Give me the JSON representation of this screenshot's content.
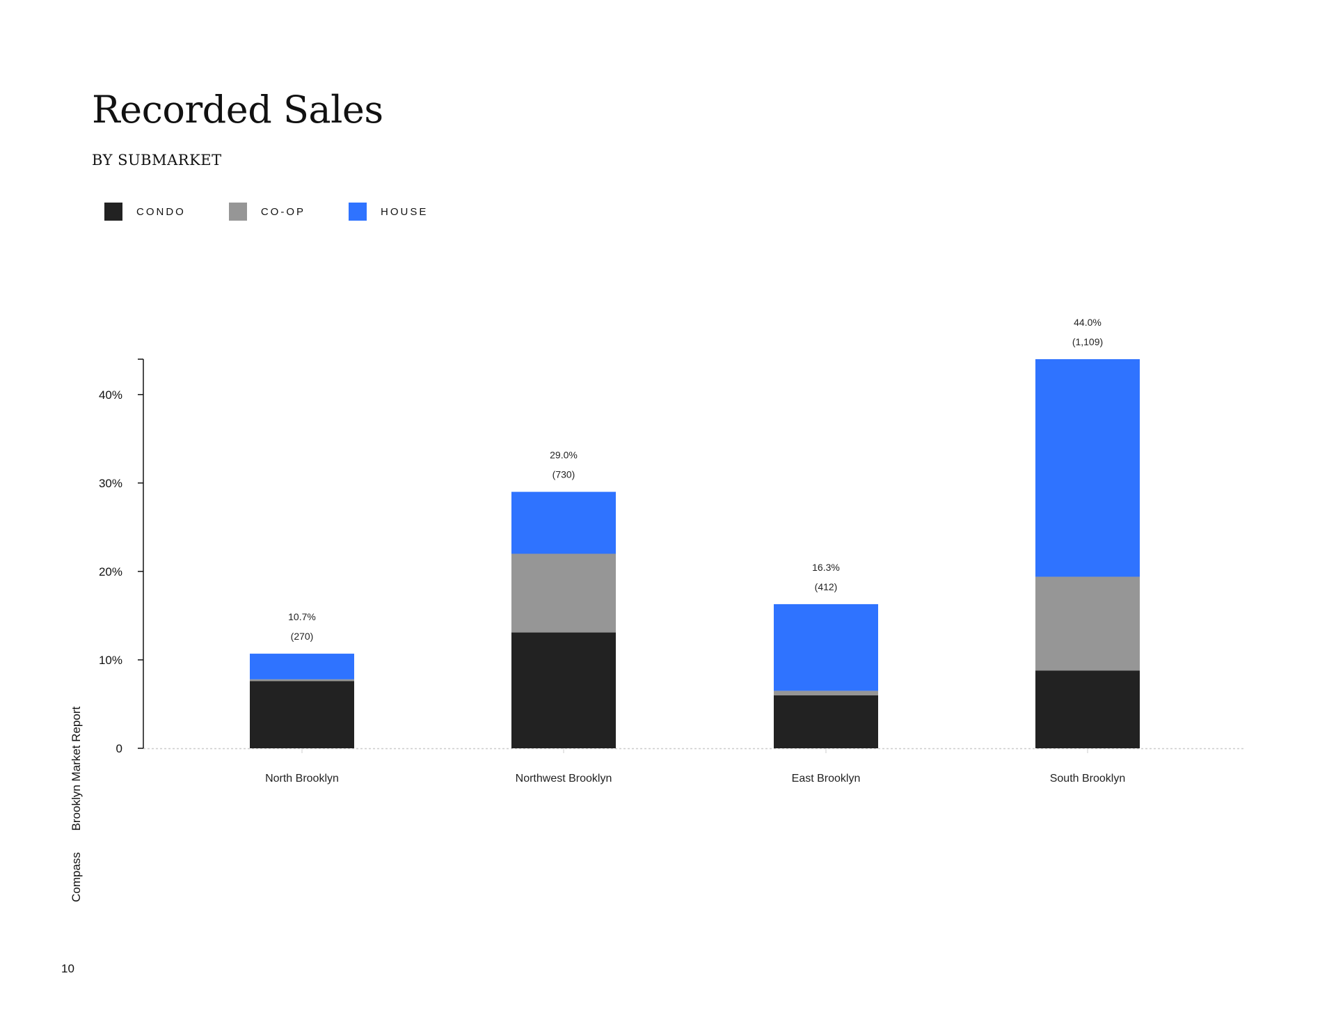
{
  "header": {
    "title": "Recorded Sales",
    "subtitle": "BY SUBMARKET"
  },
  "side_label": {
    "brand": "Compass",
    "report": "Brooklyn Market Report"
  },
  "page_number": "10",
  "colors": {
    "condo": "#222222",
    "coop": "#969696",
    "house": "#2f73ff",
    "axis": "#111111",
    "baseline": "#cccccc"
  },
  "legend": [
    {
      "label": "CONDO",
      "color": "#222222"
    },
    {
      "label": "CO-OP",
      "color": "#969696"
    },
    {
      "label": "HOUSE",
      "color": "#2f73ff"
    }
  ],
  "chart_data": {
    "type": "bar",
    "stacked": true,
    "categories": [
      "North Brooklyn",
      "Northwest Brooklyn",
      "East Brooklyn",
      "South Brooklyn"
    ],
    "series": [
      {
        "name": "CONDO",
        "color": "#222222",
        "values": [
          7.6,
          13.1,
          6.0,
          8.8
        ]
      },
      {
        "name": "CO-OP",
        "color": "#969696",
        "values": [
          0.2,
          8.9,
          0.5,
          10.6
        ]
      },
      {
        "name": "HOUSE",
        "color": "#2f73ff",
        "values": [
          2.9,
          7.0,
          9.8,
          24.6
        ]
      }
    ],
    "totals": [
      {
        "percent": "10.7%",
        "count": "(270)",
        "value": 10.7
      },
      {
        "percent": "29.0%",
        "count": "(730)",
        "value": 29.0
      },
      {
        "percent": "16.3%",
        "count": "(412)",
        "value": 16.3
      },
      {
        "percent": "44.0%",
        "count": "(1,109)",
        "value": 44.0
      }
    ],
    "y_ticks": [
      {
        "value": 0,
        "label": "0"
      },
      {
        "value": 10,
        "label": "10%"
      },
      {
        "value": 20,
        "label": "20%"
      },
      {
        "value": 30,
        "label": "30%"
      },
      {
        "value": 40,
        "label": "40%"
      }
    ],
    "ylim": [
      0,
      44
    ],
    "legend_position": "top-left",
    "grid": false
  }
}
